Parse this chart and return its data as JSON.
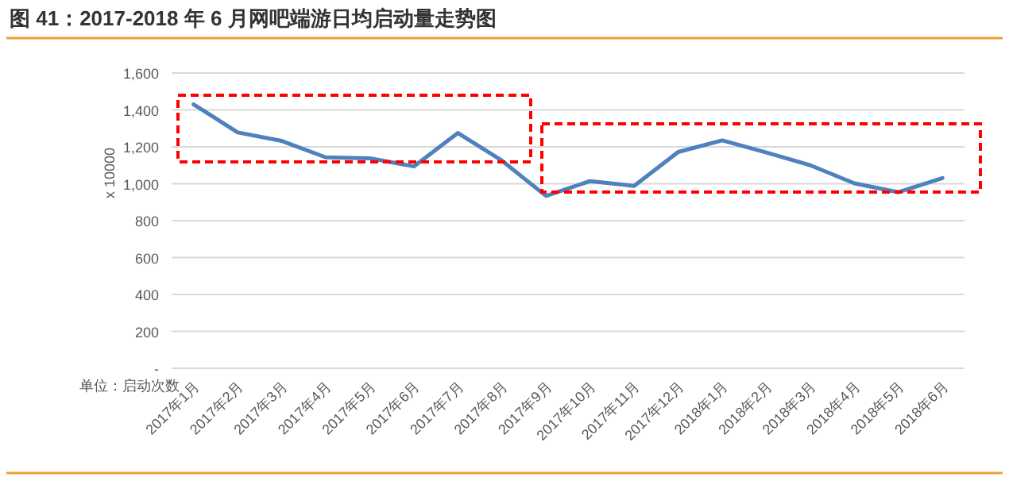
{
  "chart_data": {
    "type": "line",
    "title": "图 41：2017-2018 年 6 月网吧端游日均启动量走势图",
    "ylabel": "x 10000",
    "annotations": [
      "单位：启动次数"
    ],
    "categories": [
      "2017年1月",
      "2017年2月",
      "2017年3月",
      "2017年4月",
      "2017年5月",
      "2017年6月",
      "2017年7月",
      "2017年8月",
      "2017年9月",
      "2017年10月",
      "2017年11月",
      "2017年12月",
      "2018年1月",
      "2018年2月",
      "2018年3月",
      "2018年4月",
      "2018年5月",
      "2018年6月"
    ],
    "series": [
      {
        "color": "#4f81bd",
        "values": [
          1430,
          1278,
          1232,
          1143,
          1138,
          1094,
          1275,
          1125,
          934,
          1014,
          988,
          1172,
          1235,
          1169,
          1100,
          1002,
          954,
          1031
        ]
      }
    ],
    "ylim": [
      0,
      1600
    ],
    "yticks": [
      {
        "value": 0,
        "label": "-"
      },
      {
        "value": 200,
        "label": "200"
      },
      {
        "value": 400,
        "label": "400"
      },
      {
        "value": 600,
        "label": "600"
      },
      {
        "value": 800,
        "label": "800"
      },
      {
        "value": 1000,
        "label": "1,000"
      },
      {
        "value": 1200,
        "label": "1,200"
      },
      {
        "value": 1400,
        "label": "1,400"
      },
      {
        "value": 1600,
        "label": "1,600"
      }
    ],
    "grid": "y"
  }
}
